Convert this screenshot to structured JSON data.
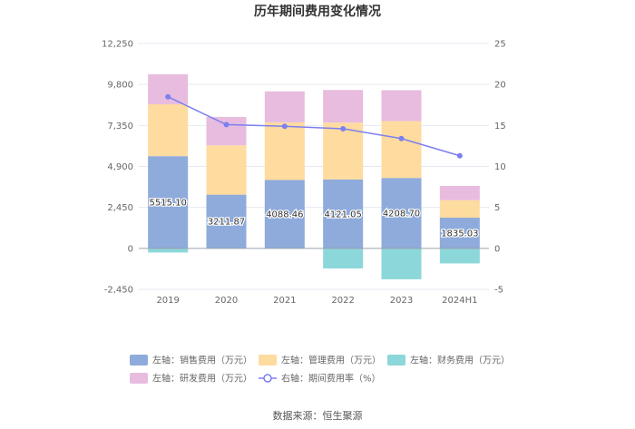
{
  "chart_data": {
    "type": "bar",
    "subtype": "stacked-bar-with-line",
    "title": "历年期间费用变化情况",
    "categories": [
      "2019",
      "2020",
      "2021",
      "2022",
      "2023",
      "2024H1"
    ],
    "y_left": {
      "ticks": [
        -2450,
        0,
        2450,
        4900,
        7350,
        9800,
        12250
      ],
      "tick_labels": [
        "-2,450",
        "0",
        "2,450",
        "4,900",
        "7,350",
        "9,800",
        "12,250"
      ],
      "ylim": [
        -2450,
        12250
      ]
    },
    "y_right": {
      "ticks": [
        -5,
        0,
        5,
        10,
        15,
        20,
        25
      ],
      "tick_labels": [
        "-5",
        "0",
        "5",
        "10",
        "15",
        "20",
        "25"
      ],
      "ylim": [
        -5,
        25
      ]
    },
    "series": [
      {
        "name": "左轴：销售费用（万元）",
        "axis": "left",
        "color": "#8eabdb",
        "values": [
          5515.1,
          3211.87,
          4088.46,
          4121.05,
          4208.7,
          1835.03
        ],
        "labels": [
          "5515.10",
          "3211.87",
          "4088.46",
          "4121.05",
          "4208.70",
          "1835.03"
        ]
      },
      {
        "name": "左轴：管理费用（万元）",
        "axis": "left",
        "color": "#fedb9f",
        "values": [
          3100,
          2950,
          3450,
          3400,
          3400,
          1050
        ]
      },
      {
        "name": "左轴：财务费用（万元）",
        "axis": "left",
        "color": "#8cd7d9",
        "values": [
          -250,
          0,
          0,
          -1200,
          -1850,
          -900
        ]
      },
      {
        "name": "左轴：研发费用（万元）",
        "axis": "left",
        "color": "#e7bcdf",
        "values": [
          1800,
          1700,
          1850,
          1950,
          1850,
          850
        ]
      },
      {
        "name": "右轴：期间费用率（%）",
        "axis": "right",
        "type": "line",
        "color": "#7b7ff0",
        "values": [
          18.5,
          15.1,
          14.9,
          14.6,
          13.4,
          11.3
        ]
      }
    ],
    "legend_position": "bottom",
    "grid": true
  },
  "footer": {
    "source": "数据来源：恒生聚源"
  }
}
